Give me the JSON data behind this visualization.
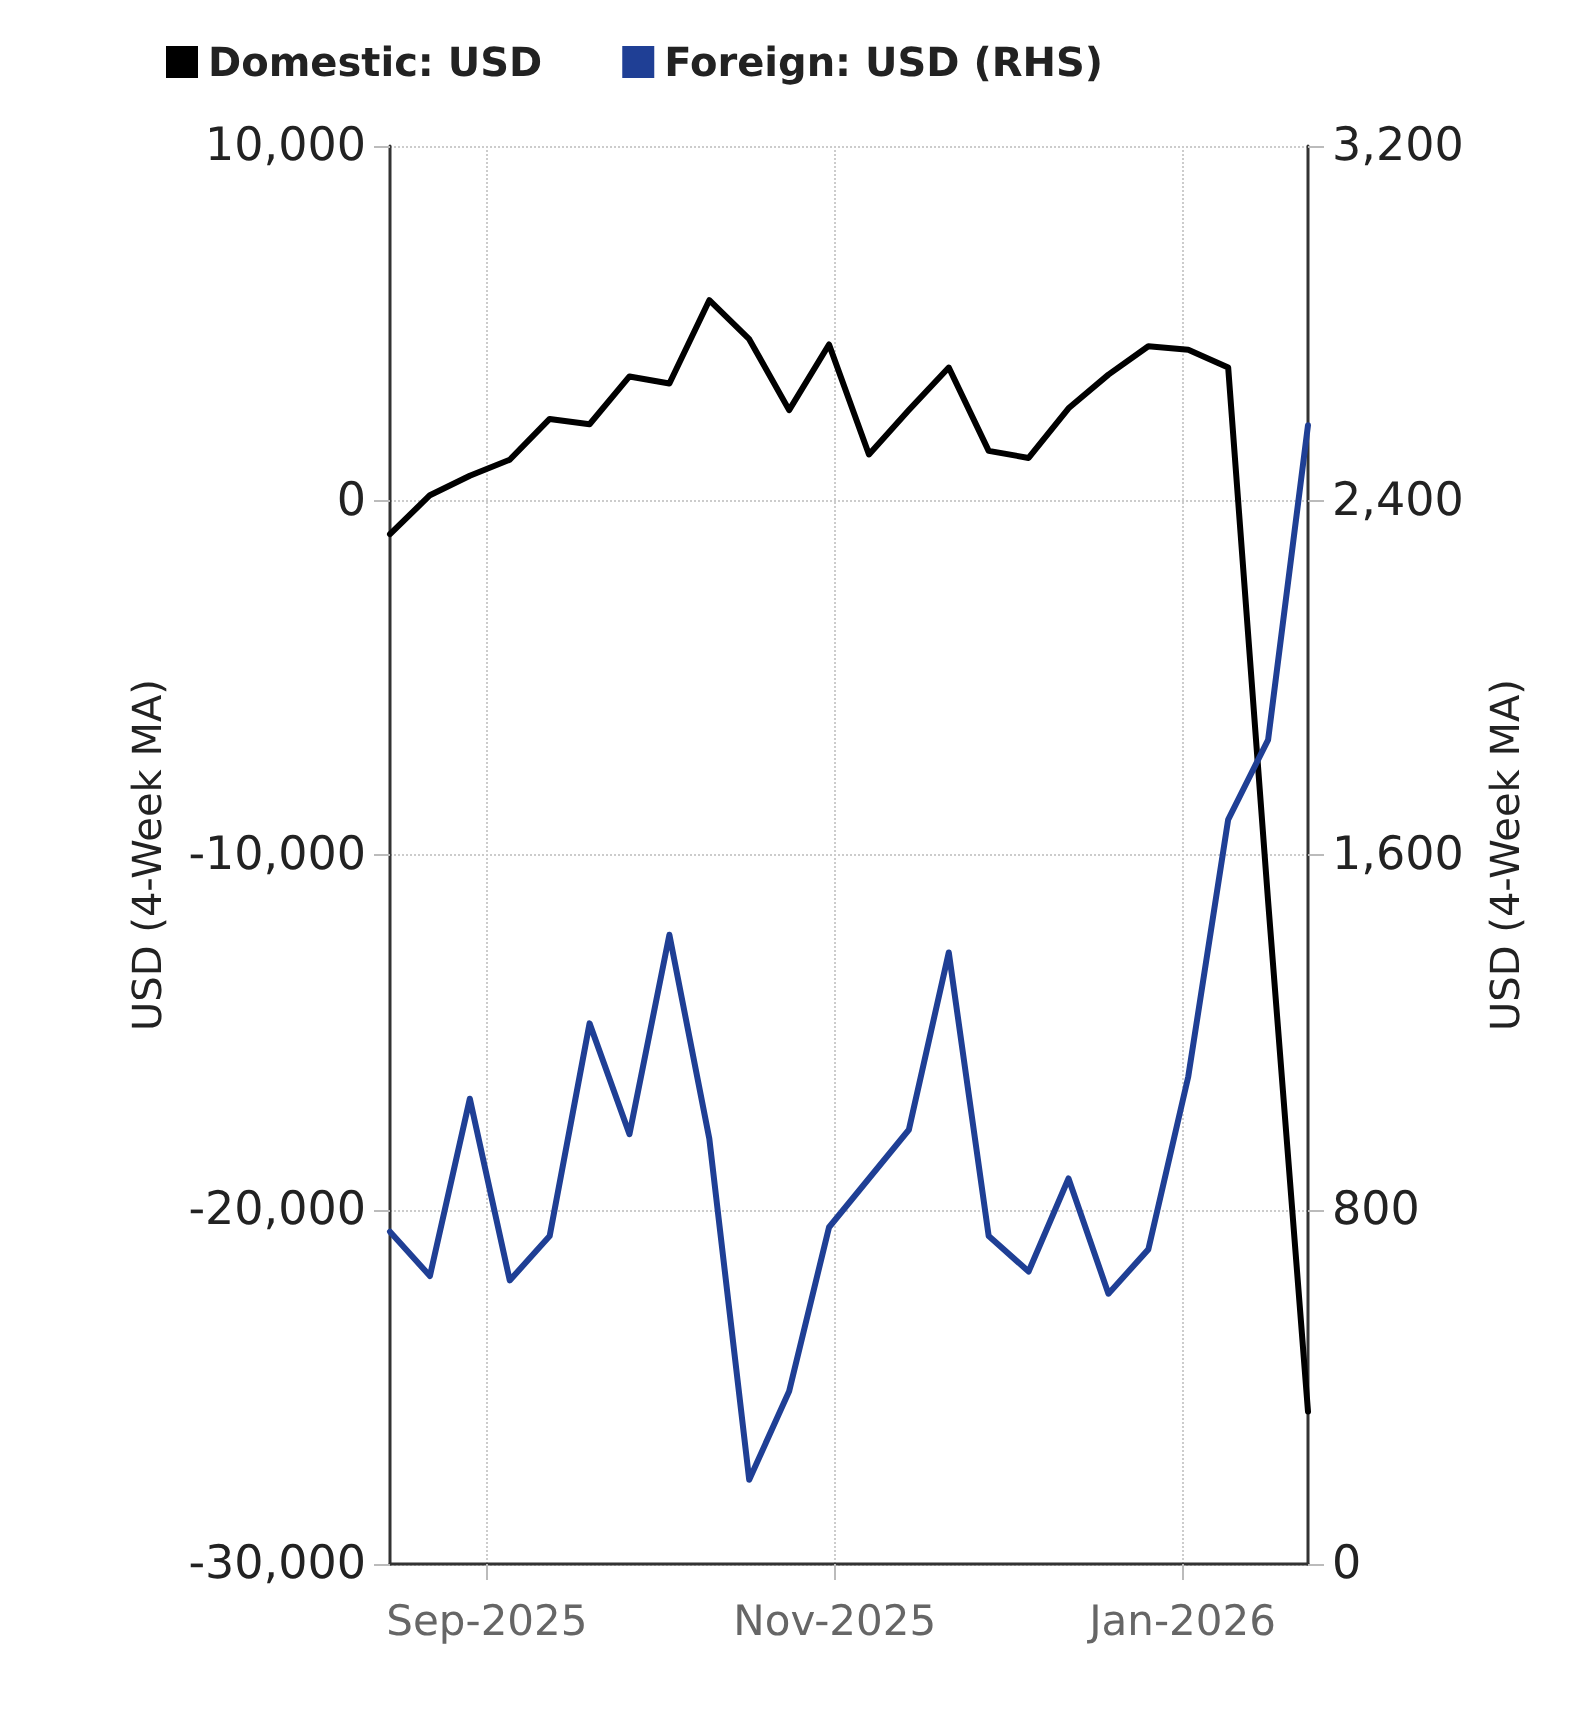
{
  "chart_data": {
    "type": "line",
    "x": [
      "2025-08-15",
      "2025-08-22",
      "2025-08-29",
      "2025-09-05",
      "2025-09-12",
      "2025-09-19",
      "2025-09-26",
      "2025-10-03",
      "2025-10-10",
      "2025-10-17",
      "2025-10-24",
      "2025-10-31",
      "2025-11-07",
      "2025-11-14",
      "2025-11-21",
      "2025-11-28",
      "2025-12-05",
      "2025-12-12",
      "2025-12-19",
      "2025-12-26",
      "2026-01-02",
      "2026-01-09",
      "2026-01-16",
      "2026-01-23"
    ],
    "series": [
      {
        "name": "Domestic: USD",
        "color": "#000000",
        "values": [
          -950,
          150,
          700,
          1150,
          2300,
          2150,
          3500,
          3300,
          5650,
          4550,
          2550,
          4400,
          1300,
          2550,
          3750,
          1400,
          1200,
          2600,
          3550,
          4350,
          4250,
          3750,
          -11300,
          -25700
        ]
      },
      {
        "name": "Foreign: USD (RHS)",
        "color": "#1f3f95",
        "axis": "y2",
        "values": [
          750,
          650,
          1050,
          640,
          740,
          1220,
          970,
          1420,
          960,
          190,
          390,
          760,
          870,
          980,
          1380,
          740,
          660,
          870,
          610,
          710,
          1100,
          1680,
          1860,
          2570
        ]
      }
    ],
    "xlim": [
      "2025-08-15",
      "2026-01-23"
    ],
    "xticks": [
      {
        "value": "2025-09-01",
        "label": "Sep-2025"
      },
      {
        "value": "2025-11-01",
        "label": "Nov-2025"
      },
      {
        "value": "2026-01-01",
        "label": "Jan-2026"
      }
    ],
    "ylim": [
      -30000,
      10000
    ],
    "yticks": [
      {
        "value": -30000,
        "label": "-30,000"
      },
      {
        "value": -20000,
        "label": "-20,000"
      },
      {
        "value": -10000,
        "label": "-10,000"
      },
      0,
      {
        "value": 10000,
        "label": "10,000"
      }
    ],
    "y2lim": [
      0,
      3200
    ],
    "y2ticks": [
      0,
      800,
      {
        "value": 1600,
        "label": "1,600"
      },
      {
        "value": 2400,
        "label": "2,400"
      },
      {
        "value": 3200,
        "label": "3,200"
      }
    ],
    "ylabel": "USD (4-Week MA)",
    "y2label": "USD (4-Week MA)",
    "grid": true,
    "legend": "top",
    "marker": "none",
    "line_style": "solid"
  }
}
